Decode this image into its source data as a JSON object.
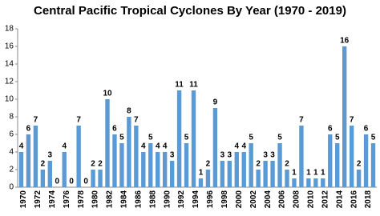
{
  "chart_data": {
    "type": "bar",
    "title": "Central Pacific Tropical Cyclones By Year (1970 - 2019)",
    "categories": [
      "1970",
      null,
      "1972",
      null,
      "1974",
      null,
      "1976",
      null,
      "1978",
      null,
      "1980",
      null,
      "1982",
      null,
      "1984",
      null,
      "1986",
      null,
      "1988",
      null,
      "1990",
      null,
      "1992",
      null,
      "1994",
      null,
      "1996",
      null,
      "1998",
      null,
      "2000",
      null,
      "2002",
      null,
      "2004",
      null,
      "2006",
      null,
      "2008",
      null,
      "2010",
      null,
      "2012",
      null,
      "2014",
      null,
      "2016",
      null,
      "2018",
      null
    ],
    "values": [
      4,
      6,
      7,
      2,
      3,
      0,
      4,
      0,
      7,
      0,
      2,
      2,
      10,
      6,
      5,
      8,
      7,
      4,
      5,
      4,
      4,
      3,
      11,
      5,
      11,
      1,
      2,
      9,
      3,
      3,
      4,
      4,
      5,
      2,
      3,
      3,
      5,
      2,
      1,
      7,
      1,
      1,
      1,
      6,
      5,
      16,
      7,
      2,
      6,
      5
    ],
    "color": "#5b9bd5",
    "ylim": [
      0,
      18
    ],
    "yticks": [
      0,
      2,
      4,
      6,
      8,
      10,
      12,
      14,
      16,
      18
    ],
    "grid": false
  }
}
